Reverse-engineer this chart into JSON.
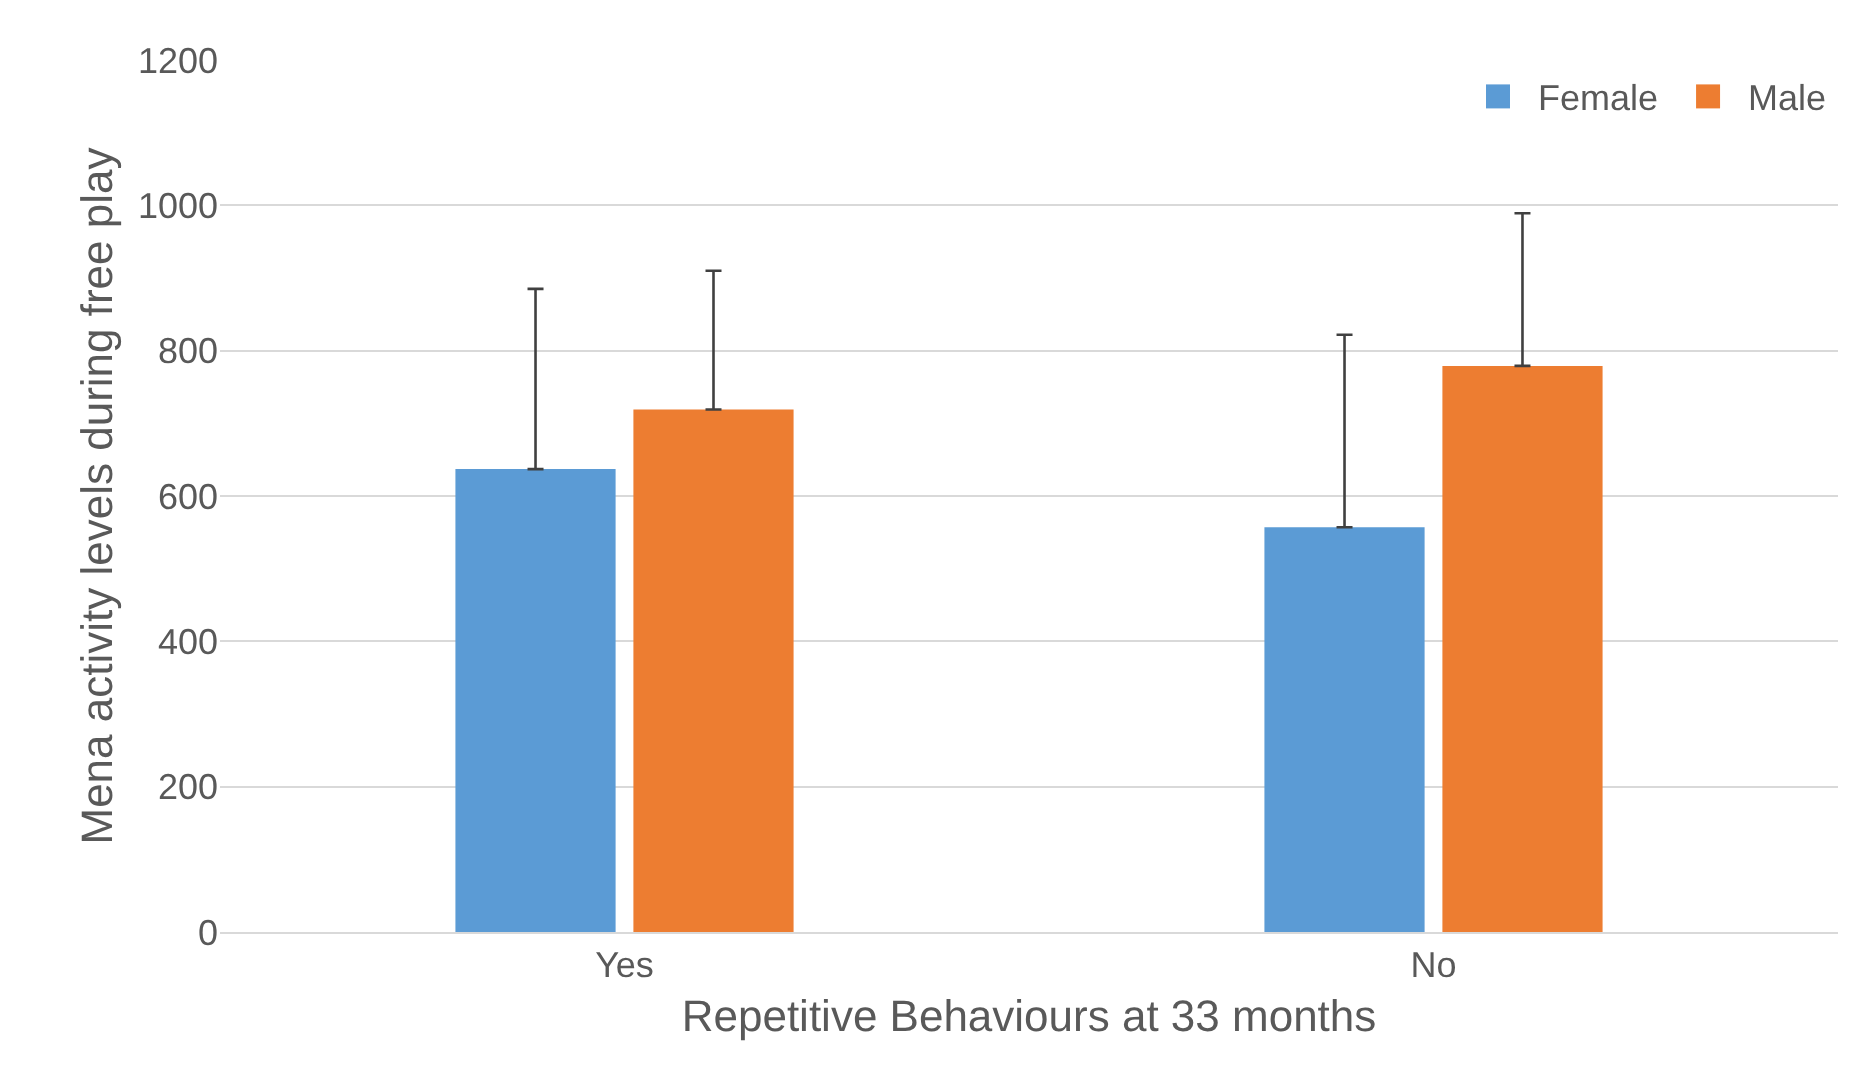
{
  "chart_data": {
    "type": "bar",
    "xlabel": "Repetitive Behaviours at 33 months",
    "ylabel": "Mena activity levels during free play",
    "categories": [
      "Yes",
      "No"
    ],
    "series": [
      {
        "name": "Female",
        "color": "#5b9bd5",
        "values": [
          637,
          557
        ],
        "errors": [
          [
            637,
            885
          ],
          [
            557,
            822
          ]
        ]
      },
      {
        "name": "Male",
        "color": "#ed7d31",
        "values": [
          719,
          779
        ],
        "errors": [
          [
            719,
            910
          ],
          [
            779,
            989
          ]
        ]
      }
    ],
    "ylim": [
      0,
      1200
    ],
    "yticks": [
      0,
      200,
      400,
      600,
      800,
      1000,
      1200
    ],
    "grid": "y",
    "legend": "top right"
  }
}
